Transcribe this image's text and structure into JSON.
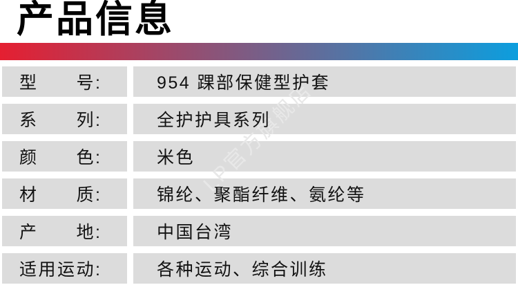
{
  "title": "产品信息",
  "watermark": "LP官方旗舰店",
  "colors": {
    "gradient_left": "#e51f31",
    "gradient_right": "#0c9ede",
    "row_bg": "#dcdcdc",
    "text": "#111111",
    "watermark": "#e8e8e8"
  },
  "spec_table": {
    "rows": [
      {
        "label": "型　　号:",
        "value": "954 踝部保健型护套"
      },
      {
        "label": "系　　列:",
        "value": "全护护具系列"
      },
      {
        "label": "颜　　色:",
        "value": "米色"
      },
      {
        "label": "材　　质:",
        "value": "锦纶、聚酯纤维、氨纶等"
      },
      {
        "label": "产　　地:",
        "value": "中国台湾"
      },
      {
        "label": "适用运动:",
        "value": "各种运动、综合训练"
      }
    ]
  }
}
